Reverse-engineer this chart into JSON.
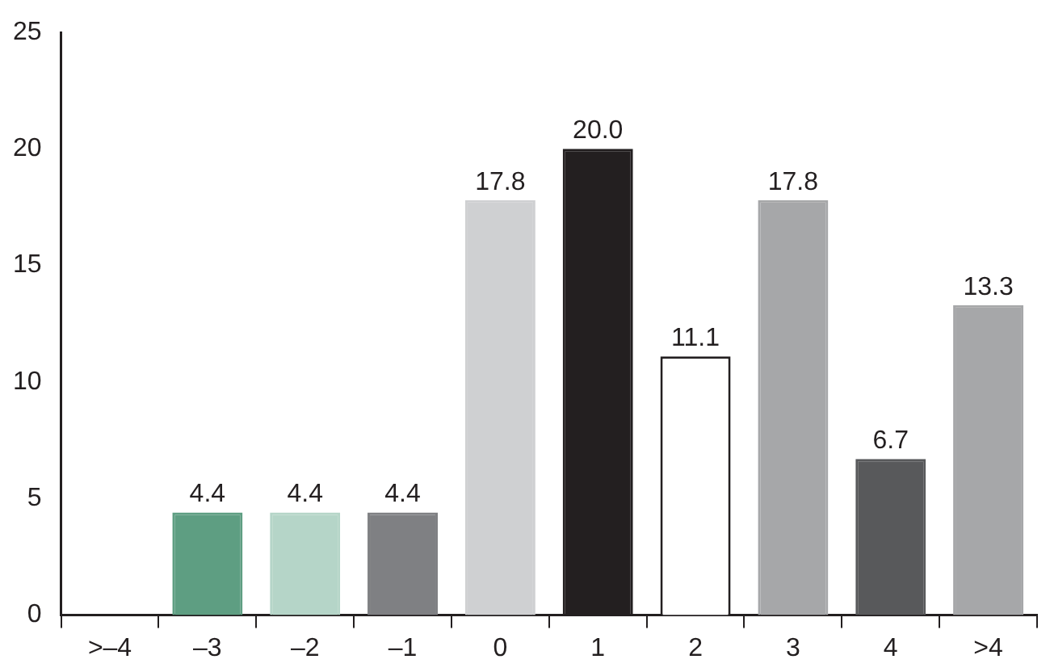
{
  "chart_data": {
    "type": "bar",
    "categories": [
      ">–4",
      "–3",
      "–2",
      "–1",
      "0",
      "1",
      "2",
      "3",
      "4",
      ">4"
    ],
    "values": [
      null,
      4.4,
      4.4,
      4.4,
      17.8,
      20.0,
      11.1,
      17.8,
      6.7,
      13.3
    ],
    "colors": [
      "#a6a7a9",
      "#5e9e82",
      "#b5d5c8",
      "#7f8083",
      "#cfd0d2",
      "#231f20",
      "#ffffff",
      "#a6a7a9",
      "#58595b",
      "#a6a7a9"
    ],
    "value_labels": [
      null,
      "4.4",
      "4.4",
      "4.4",
      "17.8",
      "20.0",
      "11.1",
      "17.8",
      "6.7",
      "13.3"
    ],
    "ylim": [
      0,
      25
    ],
    "yticks": [
      0,
      5,
      10,
      15,
      20,
      25
    ],
    "grid": false,
    "legend": false
  }
}
